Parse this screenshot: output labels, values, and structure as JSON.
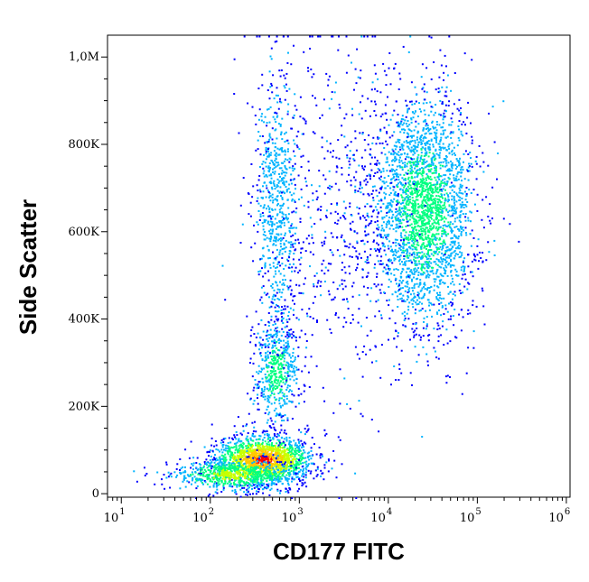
{
  "chart_data": {
    "type": "scatter",
    "plot_style": "density dot plot (flow cytometry)",
    "title": "",
    "xlabel": "CD177 FITC",
    "ylabel": "Side Scatter",
    "x_scale": "log",
    "x_range": [
      7,
      1100000
    ],
    "y_range": [
      -8000,
      1050000
    ],
    "x_ticks": [
      {
        "value": 10,
        "base": "10",
        "exp": "1"
      },
      {
        "value": 100,
        "base": "10",
        "exp": "2"
      },
      {
        "value": 1000,
        "base": "10",
        "exp": "3"
      },
      {
        "value": 10000,
        "base": "10",
        "exp": "4"
      },
      {
        "value": 100000,
        "base": "10",
        "exp": "5"
      },
      {
        "value": 1000000,
        "base": "10",
        "exp": "6"
      }
    ],
    "y_ticks": [
      {
        "value": 0,
        "label": "0"
      },
      {
        "value": 200000,
        "label": "200K"
      },
      {
        "value": 400000,
        "label": "400K"
      },
      {
        "value": 600000,
        "label": "600K"
      },
      {
        "value": 800000,
        "label": "800K"
      },
      {
        "value": 1000000,
        "label": "1,0M"
      }
    ],
    "density_colors": [
      "#0000ff",
      "#00b4ff",
      "#00ff80",
      "#c8ff00",
      "#ffc800",
      "#ff0000"
    ],
    "grid": false,
    "legend": "none",
    "populations": [
      {
        "x_center": 380,
        "y_center": 80000,
        "x_spread": 0.28,
        "y_spread": 28000,
        "n": 1600,
        "peak_density": 5
      },
      {
        "x_center": 180,
        "y_center": 45000,
        "x_spread": 0.35,
        "y_spread": 18000,
        "n": 700,
        "peak_density": 3
      },
      {
        "x_center": 550,
        "y_center": 280000,
        "x_spread": 0.12,
        "y_spread": 60000,
        "n": 500,
        "peak_density": 2
      },
      {
        "x_center": 550,
        "y_center": 650000,
        "x_spread": 0.13,
        "y_spread": 160000,
        "n": 700,
        "peak_density": 1
      },
      {
        "x_center": 25000,
        "y_center": 650000,
        "x_spread": 0.28,
        "y_spread": 130000,
        "n": 2600,
        "peak_density": 2
      },
      {
        "x_center": 3000,
        "y_center": 620000,
        "x_spread": 0.45,
        "y_spread": 220000,
        "n": 600,
        "peak_density": 0
      }
    ]
  }
}
